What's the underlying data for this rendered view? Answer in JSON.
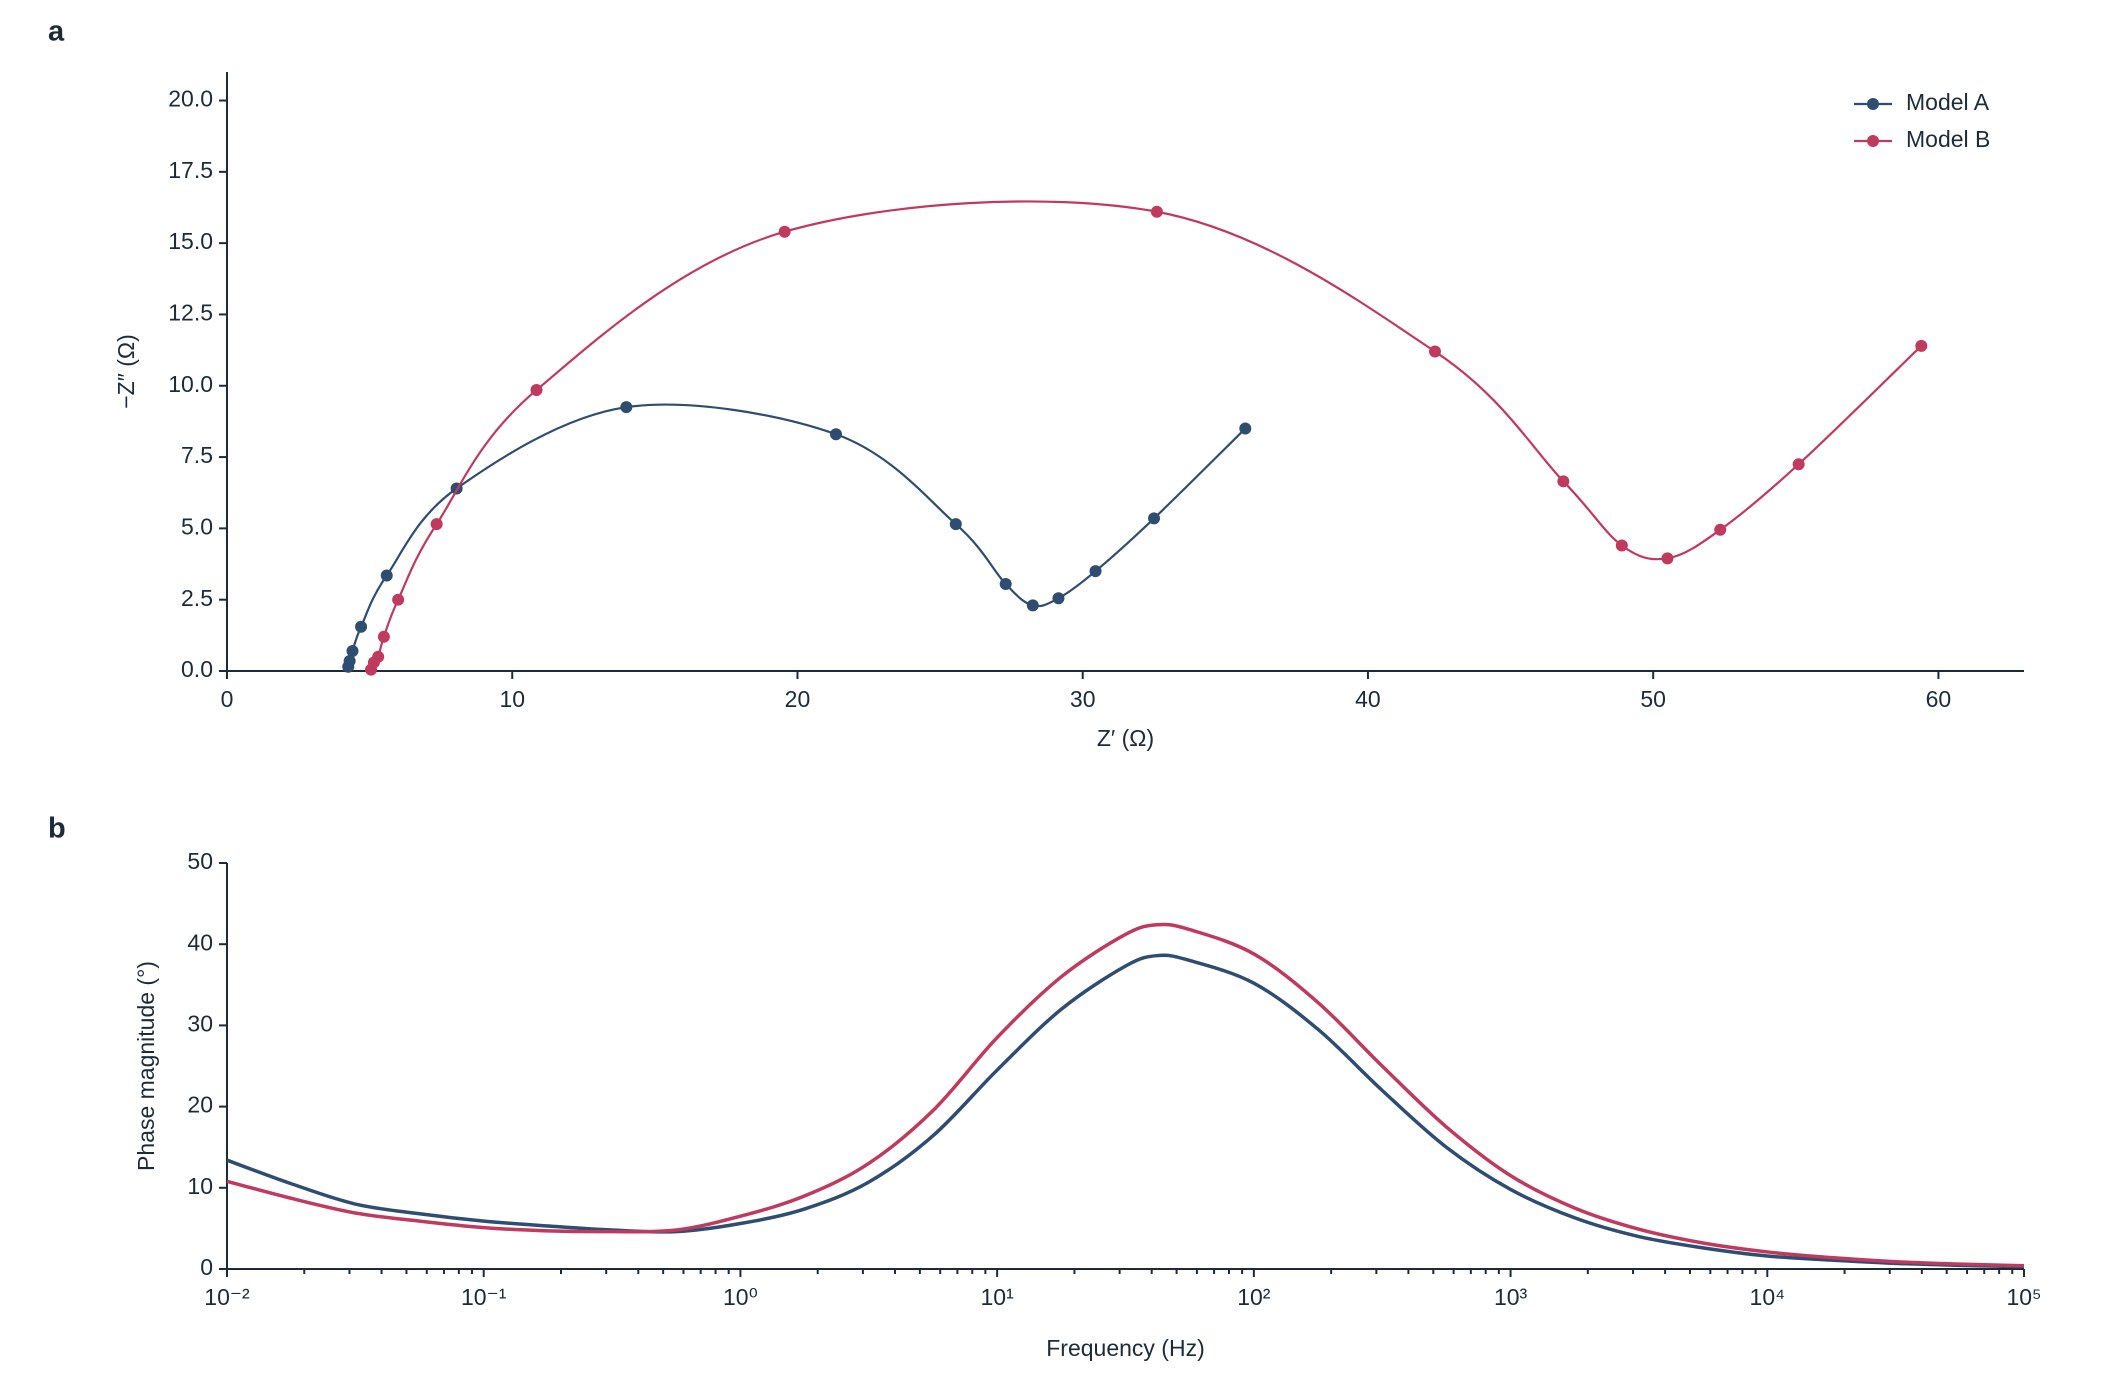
{
  "chart_data": [
    {
      "type": "line",
      "panel": "a",
      "xlabel": "Z′ (Ω)",
      "ylabel": "−Z″ (Ω)",
      "xlim": [
        0,
        63
      ],
      "ylim": [
        0,
        21
      ],
      "xticks": [
        0,
        10,
        20,
        30,
        40,
        50,
        60
      ],
      "yticks": [
        {
          "value": 0,
          "label": "0.0"
        },
        2.5,
        {
          "value": 5,
          "label": "5.0"
        },
        7.5,
        {
          "value": 10,
          "label": "10.0"
        },
        12.5,
        {
          "value": 15,
          "label": "15.0"
        },
        17.5,
        {
          "value": 20,
          "label": "20.0"
        }
      ],
      "legend": "upper right",
      "markers": true,
      "grid": false,
      "series": [
        {
          "name": "Model A",
          "color": "#2e4d70",
          "x": [
            4.25,
            4.3,
            4.4,
            4.7,
            5.6,
            8.05,
            14.0,
            21.35,
            25.55,
            27.3,
            28.25,
            29.15,
            30.45,
            32.5,
            35.7
          ],
          "values": [
            0.15,
            0.35,
            0.7,
            1.55,
            3.35,
            6.4,
            9.25,
            8.3,
            5.15,
            3.05,
            2.3,
            2.55,
            3.5,
            5.35,
            8.5
          ]
        },
        {
          "name": "Model B",
          "color": "#c0395e",
          "x": [
            5.05,
            5.15,
            5.3,
            5.5,
            6.0,
            7.35,
            10.85,
            19.55,
            32.6,
            42.35,
            46.85,
            48.9,
            50.5,
            52.35,
            55.1,
            59.4
          ],
          "values": [
            0.05,
            0.3,
            0.5,
            1.2,
            2.5,
            5.15,
            9.85,
            15.4,
            16.1,
            11.2,
            6.65,
            4.4,
            3.95,
            4.95,
            7.25,
            11.4
          ]
        }
      ]
    },
    {
      "type": "line",
      "panel": "b",
      "xlabel": "Frequency (Hz)",
      "ylabel": "Phase magnitude (°)",
      "xscale": "log",
      "minor_ticks": true,
      "markers": false,
      "grid": false,
      "xlim": [
        0.01,
        100000
      ],
      "ylim": [
        0,
        50
      ],
      "xticks": [
        {
          "value": 0.01,
          "label": "10⁻²"
        },
        {
          "value": 0.1,
          "label": "10⁻¹"
        },
        {
          "value": 1,
          "label": "10⁰"
        },
        {
          "value": 10,
          "label": "10¹"
        },
        {
          "value": 100,
          "label": "10²"
        },
        {
          "value": 1000,
          "label": "10³"
        },
        {
          "value": 10000,
          "label": "10⁴"
        },
        {
          "value": 100000,
          "label": "10⁵"
        }
      ],
      "yticks": [
        0,
        10,
        20,
        30,
        40,
        50
      ],
      "x": [
        0.01,
        0.0178,
        0.0316,
        0.0562,
        0.1,
        0.178,
        0.316,
        0.562,
        1,
        1.78,
        3.16,
        5.62,
        10,
        17.8,
        31.6,
        42.2,
        56.2,
        100,
        178,
        316,
        562,
        1000,
        1780,
        3160,
        5620,
        10000,
        17800,
        31600,
        56200,
        100000
      ],
      "series": [
        {
          "name": "Model A",
          "color": "#2e4d70",
          "values": [
            13.4,
            10.5,
            8.0,
            6.8,
            5.9,
            5.3,
            4.8,
            4.6,
            5.6,
            7.4,
            10.7,
            16.4,
            24.5,
            32.0,
            37.3,
            38.6,
            38.0,
            35.2,
            29.5,
            22.0,
            15.0,
            9.8,
            6.3,
            4.0,
            2.6,
            1.6,
            1.1,
            0.7,
            0.45,
            0.3
          ]
        },
        {
          "name": "Model B",
          "color": "#c0395e",
          "values": [
            10.8,
            8.7,
            6.9,
            5.9,
            5.1,
            4.7,
            4.6,
            4.8,
            6.5,
            9.0,
            13.0,
            19.5,
            28.5,
            36.0,
            41.2,
            42.4,
            41.8,
            38.8,
            32.8,
            25.0,
            17.5,
            11.5,
            7.5,
            4.9,
            3.2,
            2.1,
            1.4,
            0.9,
            0.6,
            0.4
          ]
        }
      ]
    }
  ]
}
